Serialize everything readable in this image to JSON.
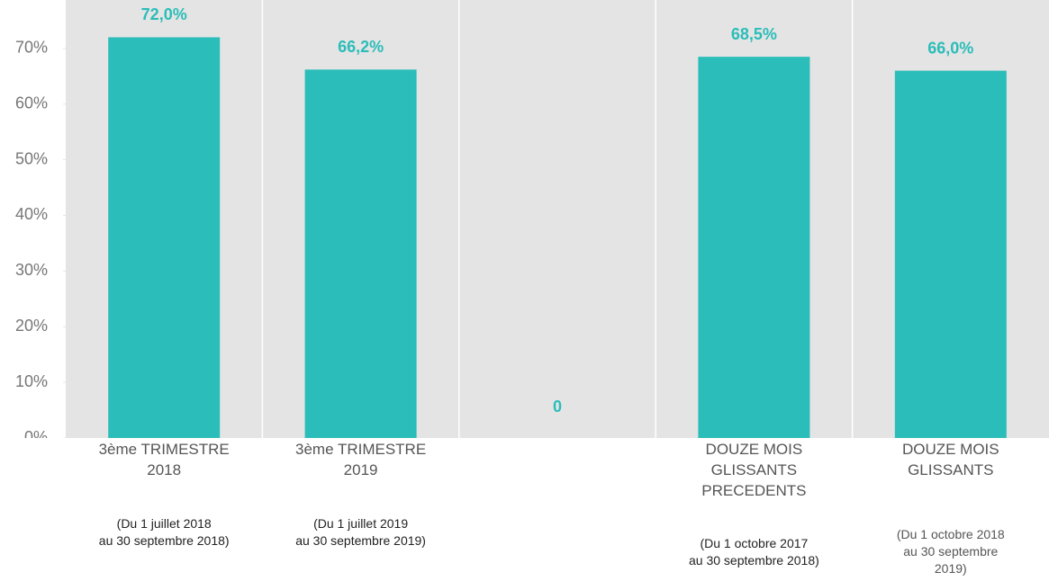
{
  "chart_data": {
    "type": "bar",
    "categories": [
      [
        "3ème TRIMESTRE",
        "2018"
      ],
      [
        "3ème TRIMESTRE",
        "2019"
      ],
      null,
      [
        "DOUZE MOIS",
        "GLISSANTS",
        "PRECEDENTS"
      ],
      [
        "DOUZE MOIS",
        "GLISSANTS"
      ]
    ],
    "annotations": [
      [
        "(Du 1 juillet 2018",
        "au 30 septembre 2018)"
      ],
      [
        "(Du 1 juillet 2019",
        "au 30 septembre 2019)"
      ],
      null,
      [
        "(Du 1 octobre 2017",
        "au 30 septembre 2018)"
      ],
      [
        "(Du 1 octobre 2018",
        "au 30 septembre",
        "2019)"
      ]
    ],
    "values": [
      72.0,
      66.2,
      0,
      68.5,
      66.0
    ],
    "value_labels": [
      "72,0%",
      "66,2%",
      "0",
      "68,5%",
      "66,0%"
    ],
    "color": "#2bbdb9",
    "ylim": [
      0,
      78.7
    ],
    "yticks": [
      {
        "value": 0,
        "label": "0%"
      },
      {
        "value": 10,
        "label": "10%"
      },
      {
        "value": 20,
        "label": "20%"
      },
      {
        "value": 30,
        "label": "30%"
      },
      {
        "value": 40,
        "label": "40%"
      },
      {
        "value": 50,
        "label": "50%"
      },
      {
        "value": 60,
        "label": "60%"
      },
      {
        "value": 70,
        "label": "70%"
      }
    ]
  }
}
